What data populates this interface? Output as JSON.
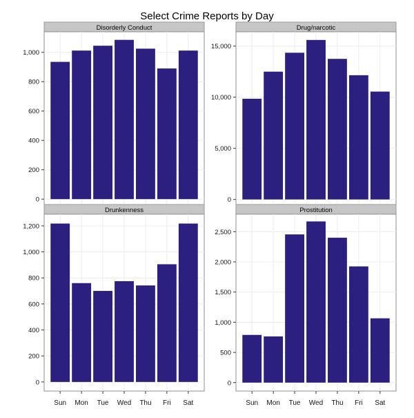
{
  "title": "Select Crime Reports by Day",
  "chart_data": {
    "type": "bar",
    "title": "Select Crime Reports by Day",
    "layout": "facet-grid-2x2",
    "bar_color": "#2b1f7f",
    "categories": [
      "Sun",
      "Mon",
      "Tue",
      "Wed",
      "Thu",
      "Fri",
      "Sat"
    ],
    "grid": true,
    "facets": [
      {
        "name": "Disorderly Conduct",
        "values": [
          935,
          1012,
          1045,
          1085,
          1025,
          890,
          1012
        ],
        "ylim": [
          -65,
          1140
        ],
        "yticks": [
          0,
          200,
          400,
          600,
          800,
          1000
        ],
        "yticklabels": [
          "0",
          "200",
          "400",
          "600",
          "800",
          "1,000"
        ]
      },
      {
        "name": "Drug/narcotic",
        "values": [
          9850,
          12500,
          14350,
          15600,
          13750,
          12150,
          10550
        ],
        "ylim": [
          -900,
          16400
        ],
        "yticks": [
          0,
          5000,
          10000,
          15000
        ],
        "yticklabels": [
          "0",
          "5,000",
          "10,000",
          "15,000"
        ]
      },
      {
        "name": "Drunkenness",
        "values": [
          1218,
          760,
          700,
          775,
          742,
          905,
          1218
        ],
        "ylim": [
          -70,
          1290
        ],
        "yticks": [
          0,
          200,
          400,
          600,
          800,
          1000,
          1200
        ],
        "yticklabels": [
          "0",
          "200",
          "400",
          "600",
          "800",
          "1,000",
          "1,200"
        ]
      },
      {
        "name": "Prostitution",
        "values": [
          790,
          765,
          2455,
          2670,
          2400,
          1925,
          1065
        ],
        "ylim": [
          -140,
          2790
        ],
        "yticks": [
          0,
          500,
          1000,
          1500,
          2000,
          2500
        ],
        "yticklabels": [
          "0",
          "500",
          "1,000",
          "1,500",
          "2,000",
          "2,500"
        ]
      }
    ]
  }
}
